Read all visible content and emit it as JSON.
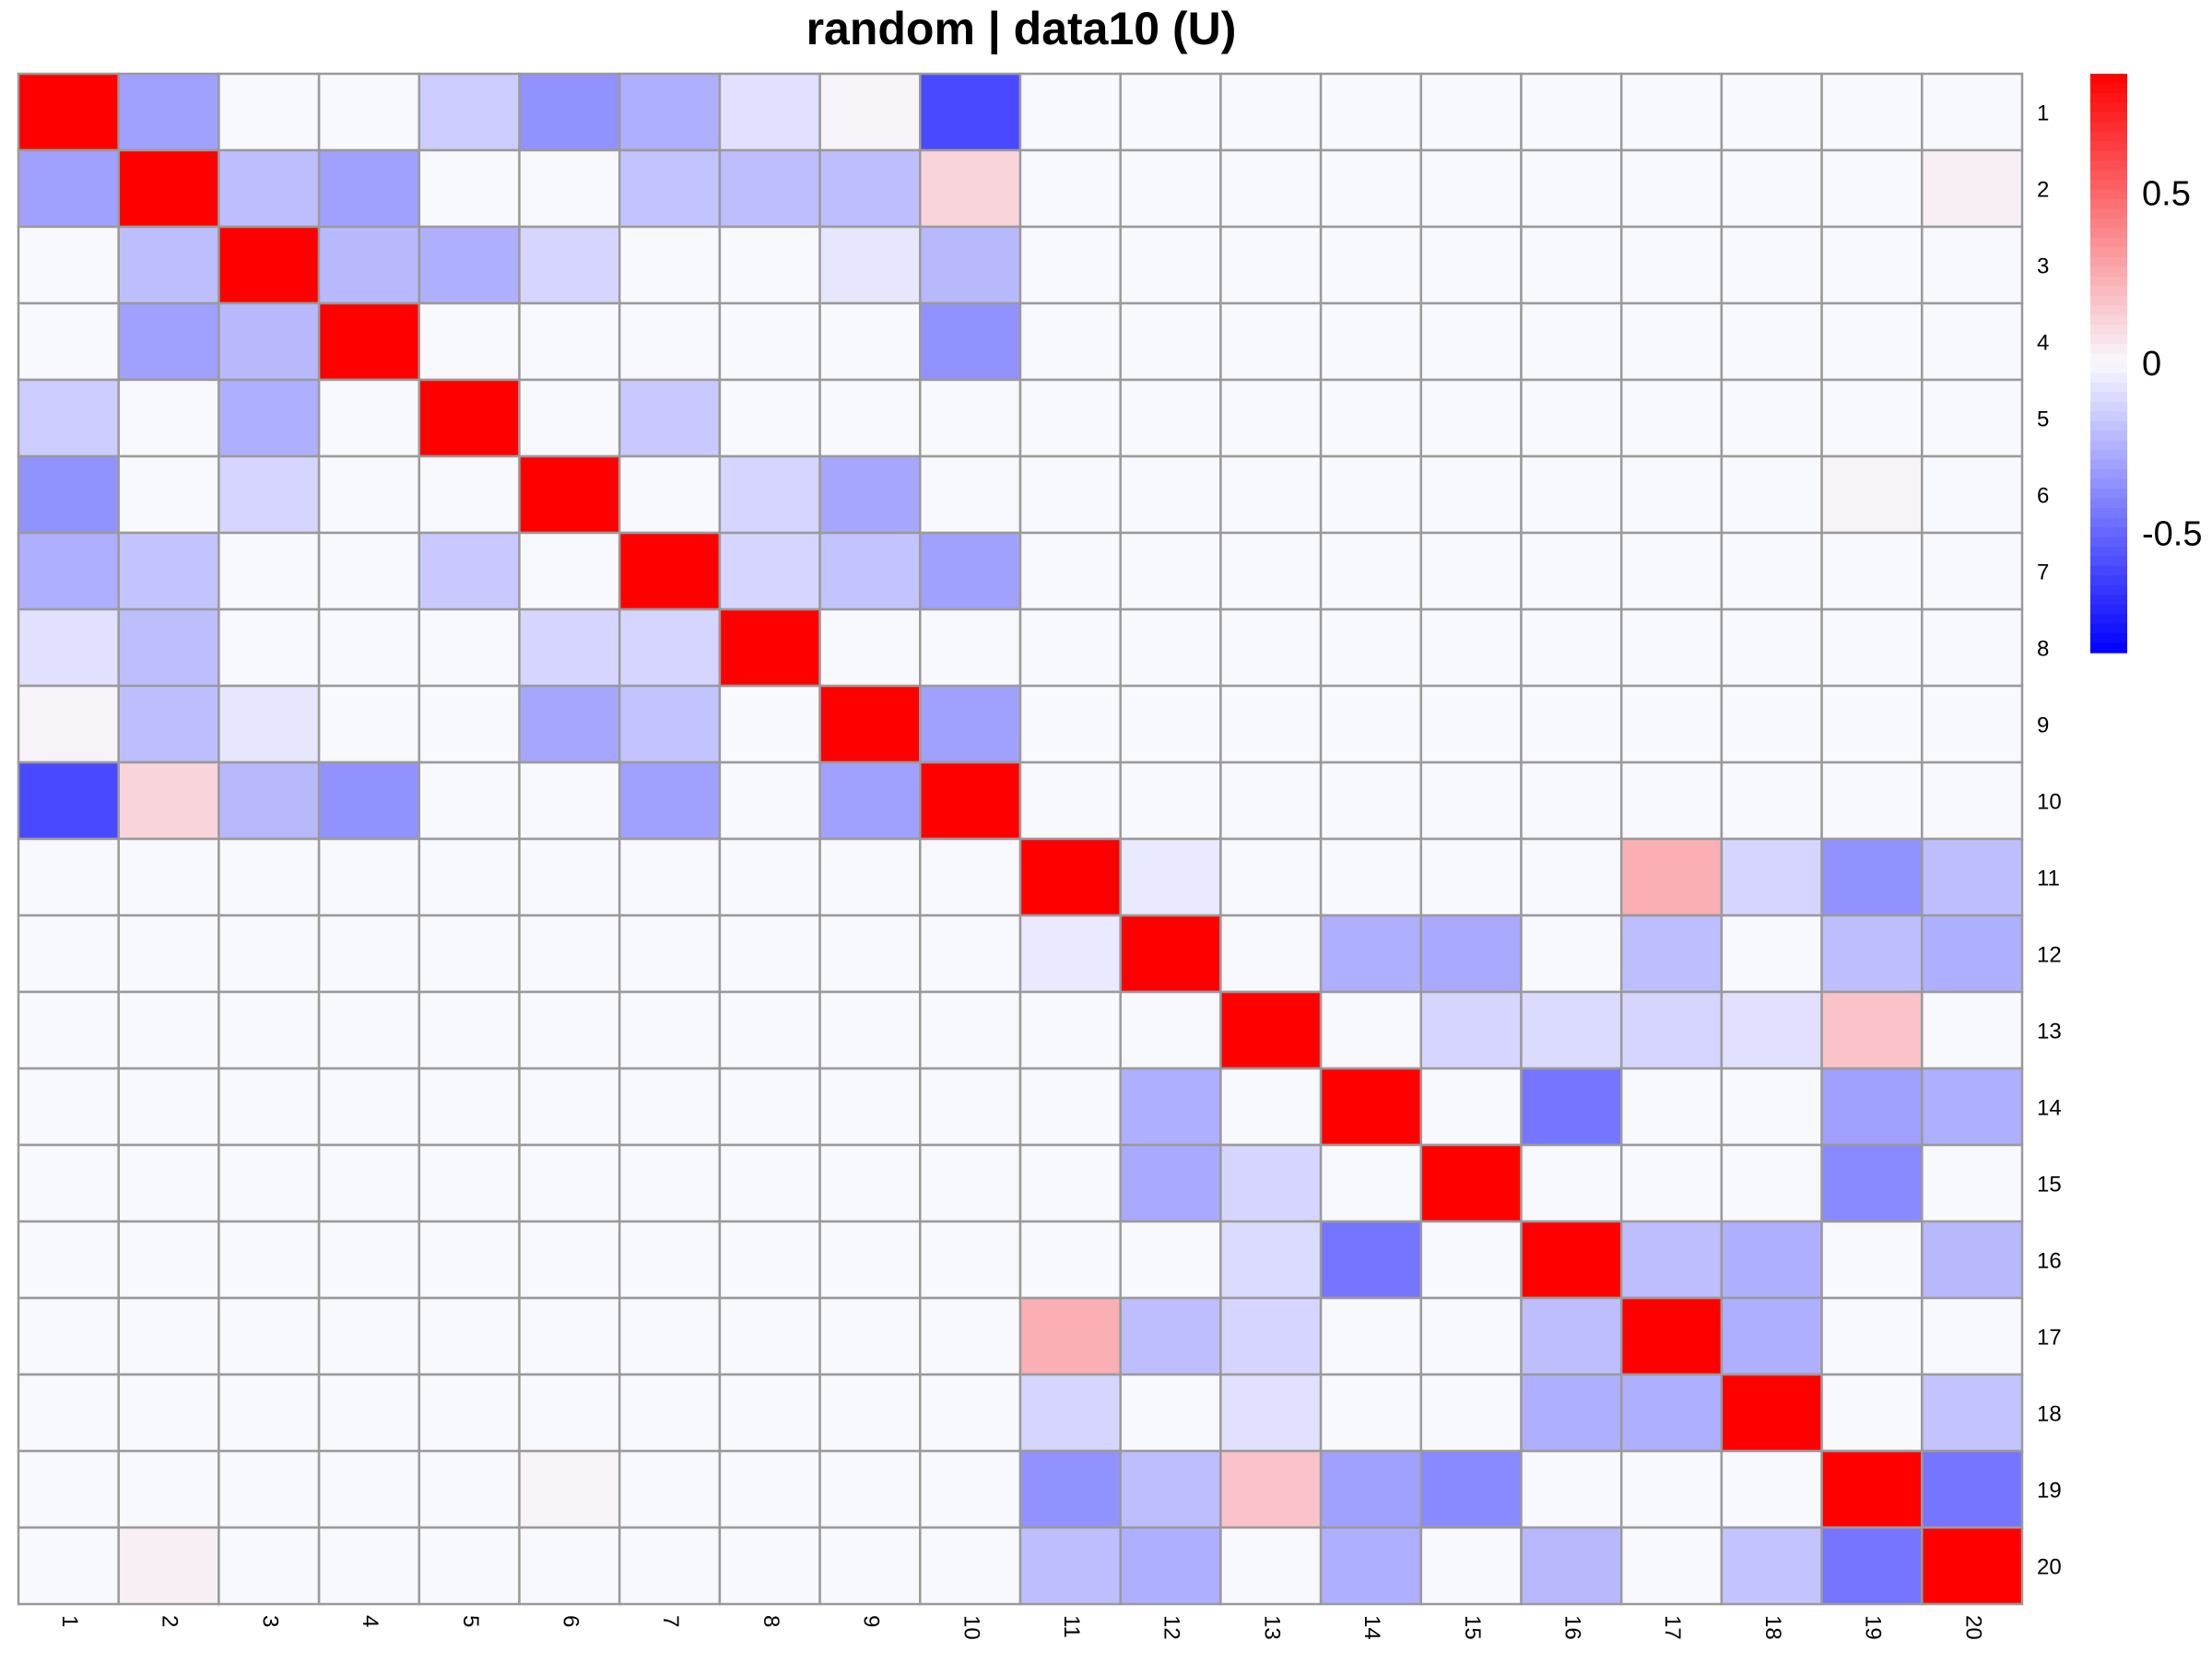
{
  "chart_data": {
    "type": "heatmap",
    "title": "random | data10 (U)",
    "row_labels": [
      "1",
      "2",
      "3",
      "4",
      "5",
      "6",
      "7",
      "8",
      "9",
      "10",
      "11",
      "12",
      "13",
      "14",
      "15",
      "16",
      "17",
      "18",
      "19",
      "20"
    ],
    "col_labels": [
      "1",
      "2",
      "3",
      "4",
      "5",
      "6",
      "7",
      "8",
      "9",
      "10",
      "11",
      "12",
      "13",
      "14",
      "15",
      "16",
      "17",
      "18",
      "19",
      "20"
    ],
    "values": [
      [
        1,
        -0.3,
        0,
        0,
        -0.15,
        -0.35,
        -0.25,
        -0.08,
        0.02,
        -0.6,
        0,
        0,
        0,
        0,
        0,
        0,
        0,
        0,
        0,
        0
      ],
      [
        -0.3,
        1,
        -0.2,
        -0.3,
        0,
        0,
        -0.18,
        -0.2,
        -0.2,
        0.12,
        0,
        0,
        0,
        0,
        0,
        0,
        0,
        0,
        0,
        0.03
      ],
      [
        0,
        -0.2,
        1,
        -0.22,
        -0.25,
        -0.12,
        0,
        0,
        -0.06,
        -0.22,
        0,
        0,
        0,
        0,
        0,
        0,
        0,
        0,
        0,
        0
      ],
      [
        0,
        -0.3,
        -0.22,
        1,
        0,
        0,
        0,
        0,
        0,
        -0.35,
        0,
        0,
        0,
        0,
        0,
        0,
        0,
        0,
        0,
        0
      ],
      [
        -0.15,
        0,
        -0.25,
        0,
        1,
        0,
        -0.16,
        0,
        0,
        0,
        0,
        0,
        0,
        0,
        0,
        0,
        0,
        0,
        0,
        0
      ],
      [
        -0.35,
        0,
        -0.12,
        0,
        0,
        1,
        0,
        -0.12,
        -0.28,
        0,
        0,
        0,
        0,
        0,
        0,
        0,
        0,
        0,
        0.02,
        0
      ],
      [
        -0.25,
        -0.18,
        0,
        0,
        -0.16,
        0,
        1,
        -0.12,
        -0.18,
        -0.3,
        0,
        0,
        0,
        0,
        0,
        0,
        0,
        0,
        0,
        0
      ],
      [
        -0.08,
        -0.2,
        0,
        0,
        0,
        -0.12,
        -0.12,
        1,
        0,
        0,
        0,
        0,
        0,
        0,
        0,
        0,
        0,
        0,
        0,
        0
      ],
      [
        0.02,
        -0.2,
        -0.06,
        0,
        0,
        -0.28,
        -0.18,
        0,
        1,
        -0.3,
        0,
        0,
        0,
        0,
        0,
        0,
        0,
        0,
        0,
        0
      ],
      [
        -0.6,
        0.12,
        -0.22,
        -0.35,
        0,
        0,
        -0.3,
        0,
        -0.3,
        1,
        0,
        0,
        0,
        0,
        0,
        0,
        0,
        0,
        0,
        0
      ],
      [
        0,
        0,
        0,
        0,
        0,
        0,
        0,
        0,
        0,
        0,
        1,
        -0.05,
        0,
        0,
        0,
        0,
        0.25,
        -0.12,
        -0.35,
        -0.2
      ],
      [
        0,
        0,
        0,
        0,
        0,
        0,
        0,
        0,
        0,
        0,
        -0.05,
        1,
        0,
        -0.25,
        -0.27,
        0,
        -0.2,
        0,
        -0.2,
        -0.25
      ],
      [
        0,
        0,
        0,
        0,
        0,
        0,
        0,
        0,
        0,
        0,
        0,
        0,
        1,
        0,
        -0.12,
        -0.1,
        -0.12,
        -0.08,
        0.18,
        0
      ],
      [
        0,
        0,
        0,
        0,
        0,
        0,
        0,
        0,
        0,
        0,
        0,
        -0.25,
        0,
        1,
        0,
        -0.45,
        0,
        0,
        -0.3,
        -0.25
      ],
      [
        0,
        0,
        0,
        0,
        0,
        0,
        0,
        0,
        0,
        0,
        0,
        -0.27,
        -0.12,
        0,
        1,
        0,
        0,
        0,
        -0.38,
        0
      ],
      [
        0,
        0,
        0,
        0,
        0,
        0,
        0,
        0,
        0,
        0,
        0,
        0,
        -0.1,
        -0.45,
        0,
        1,
        -0.2,
        -0.25,
        0,
        -0.22
      ],
      [
        0,
        0,
        0,
        0,
        0,
        0,
        0,
        0,
        0,
        0,
        0.25,
        -0.2,
        -0.12,
        0,
        0,
        -0.2,
        1,
        -0.25,
        0,
        0
      ],
      [
        0,
        0,
        0,
        0,
        0,
        0,
        0,
        0,
        0,
        0,
        -0.12,
        0,
        -0.08,
        0,
        0,
        -0.25,
        -0.25,
        1,
        0,
        -0.18
      ],
      [
        0,
        0,
        0,
        0,
        0,
        0.02,
        0,
        0,
        0,
        0,
        -0.35,
        -0.2,
        0.18,
        -0.3,
        -0.38,
        0,
        0,
        0,
        1,
        -0.45
      ],
      [
        0,
        0.03,
        0,
        0,
        0,
        0,
        0,
        0,
        0,
        0,
        -0.2,
        -0.25,
        0,
        -0.25,
        0,
        -0.22,
        0,
        -0.18,
        -0.45,
        1
      ]
    ],
    "color_scale": {
      "min": -0.85,
      "max": 0.85,
      "low_color": "#0000ff",
      "mid_color": "#f8f8ff",
      "high_color": "#ff0000",
      "ticks": [
        0.5,
        0,
        -0.5
      ],
      "tick_labels": [
        "0.5",
        "0",
        "-0.5"
      ]
    },
    "grid_color": "#9a9a9a",
    "legend_position": "right"
  }
}
